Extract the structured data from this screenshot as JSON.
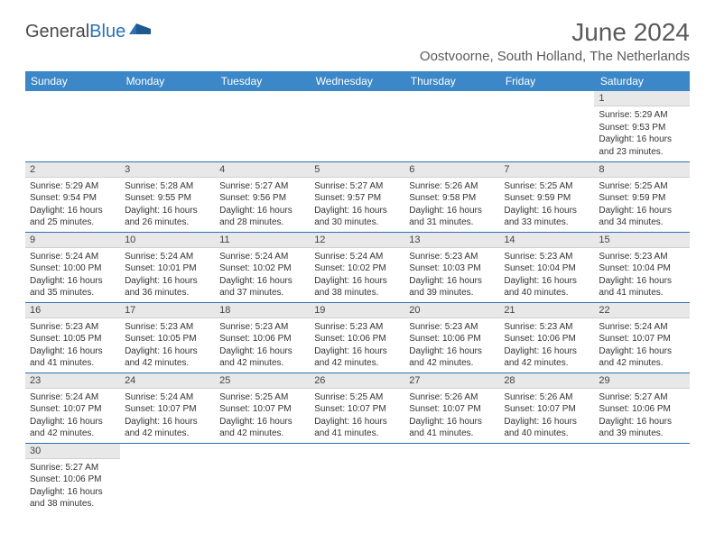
{
  "logo": {
    "part1": "General",
    "part2": "Blue"
  },
  "title": "June 2024",
  "location": "Oostvoorne, South Holland, The Netherlands",
  "colors": {
    "header_bg": "#3b87c8",
    "header_text": "#ffffff",
    "daynum_bg": "#e8e8e8",
    "border": "#2a72b5",
    "text": "#333333",
    "title_text": "#5a5a5a",
    "logo_gray": "#4a4a4a",
    "logo_blue": "#2a72b5"
  },
  "weekdays": [
    "Sunday",
    "Monday",
    "Tuesday",
    "Wednesday",
    "Thursday",
    "Friday",
    "Saturday"
  ],
  "weeks": [
    [
      null,
      null,
      null,
      null,
      null,
      null,
      {
        "n": "1",
        "sr": "Sunrise: 5:29 AM",
        "ss": "Sunset: 9:53 PM",
        "d1": "Daylight: 16 hours",
        "d2": "and 23 minutes."
      }
    ],
    [
      {
        "n": "2",
        "sr": "Sunrise: 5:29 AM",
        "ss": "Sunset: 9:54 PM",
        "d1": "Daylight: 16 hours",
        "d2": "and 25 minutes."
      },
      {
        "n": "3",
        "sr": "Sunrise: 5:28 AM",
        "ss": "Sunset: 9:55 PM",
        "d1": "Daylight: 16 hours",
        "d2": "and 26 minutes."
      },
      {
        "n": "4",
        "sr": "Sunrise: 5:27 AM",
        "ss": "Sunset: 9:56 PM",
        "d1": "Daylight: 16 hours",
        "d2": "and 28 minutes."
      },
      {
        "n": "5",
        "sr": "Sunrise: 5:27 AM",
        "ss": "Sunset: 9:57 PM",
        "d1": "Daylight: 16 hours",
        "d2": "and 30 minutes."
      },
      {
        "n": "6",
        "sr": "Sunrise: 5:26 AM",
        "ss": "Sunset: 9:58 PM",
        "d1": "Daylight: 16 hours",
        "d2": "and 31 minutes."
      },
      {
        "n": "7",
        "sr": "Sunrise: 5:25 AM",
        "ss": "Sunset: 9:59 PM",
        "d1": "Daylight: 16 hours",
        "d2": "and 33 minutes."
      },
      {
        "n": "8",
        "sr": "Sunrise: 5:25 AM",
        "ss": "Sunset: 9:59 PM",
        "d1": "Daylight: 16 hours",
        "d2": "and 34 minutes."
      }
    ],
    [
      {
        "n": "9",
        "sr": "Sunrise: 5:24 AM",
        "ss": "Sunset: 10:00 PM",
        "d1": "Daylight: 16 hours",
        "d2": "and 35 minutes."
      },
      {
        "n": "10",
        "sr": "Sunrise: 5:24 AM",
        "ss": "Sunset: 10:01 PM",
        "d1": "Daylight: 16 hours",
        "d2": "and 36 minutes."
      },
      {
        "n": "11",
        "sr": "Sunrise: 5:24 AM",
        "ss": "Sunset: 10:02 PM",
        "d1": "Daylight: 16 hours",
        "d2": "and 37 minutes."
      },
      {
        "n": "12",
        "sr": "Sunrise: 5:24 AM",
        "ss": "Sunset: 10:02 PM",
        "d1": "Daylight: 16 hours",
        "d2": "and 38 minutes."
      },
      {
        "n": "13",
        "sr": "Sunrise: 5:23 AM",
        "ss": "Sunset: 10:03 PM",
        "d1": "Daylight: 16 hours",
        "d2": "and 39 minutes."
      },
      {
        "n": "14",
        "sr": "Sunrise: 5:23 AM",
        "ss": "Sunset: 10:04 PM",
        "d1": "Daylight: 16 hours",
        "d2": "and 40 minutes."
      },
      {
        "n": "15",
        "sr": "Sunrise: 5:23 AM",
        "ss": "Sunset: 10:04 PM",
        "d1": "Daylight: 16 hours",
        "d2": "and 41 minutes."
      }
    ],
    [
      {
        "n": "16",
        "sr": "Sunrise: 5:23 AM",
        "ss": "Sunset: 10:05 PM",
        "d1": "Daylight: 16 hours",
        "d2": "and 41 minutes."
      },
      {
        "n": "17",
        "sr": "Sunrise: 5:23 AM",
        "ss": "Sunset: 10:05 PM",
        "d1": "Daylight: 16 hours",
        "d2": "and 42 minutes."
      },
      {
        "n": "18",
        "sr": "Sunrise: 5:23 AM",
        "ss": "Sunset: 10:06 PM",
        "d1": "Daylight: 16 hours",
        "d2": "and 42 minutes."
      },
      {
        "n": "19",
        "sr": "Sunrise: 5:23 AM",
        "ss": "Sunset: 10:06 PM",
        "d1": "Daylight: 16 hours",
        "d2": "and 42 minutes."
      },
      {
        "n": "20",
        "sr": "Sunrise: 5:23 AM",
        "ss": "Sunset: 10:06 PM",
        "d1": "Daylight: 16 hours",
        "d2": "and 42 minutes."
      },
      {
        "n": "21",
        "sr": "Sunrise: 5:23 AM",
        "ss": "Sunset: 10:06 PM",
        "d1": "Daylight: 16 hours",
        "d2": "and 42 minutes."
      },
      {
        "n": "22",
        "sr": "Sunrise: 5:24 AM",
        "ss": "Sunset: 10:07 PM",
        "d1": "Daylight: 16 hours",
        "d2": "and 42 minutes."
      }
    ],
    [
      {
        "n": "23",
        "sr": "Sunrise: 5:24 AM",
        "ss": "Sunset: 10:07 PM",
        "d1": "Daylight: 16 hours",
        "d2": "and 42 minutes."
      },
      {
        "n": "24",
        "sr": "Sunrise: 5:24 AM",
        "ss": "Sunset: 10:07 PM",
        "d1": "Daylight: 16 hours",
        "d2": "and 42 minutes."
      },
      {
        "n": "25",
        "sr": "Sunrise: 5:25 AM",
        "ss": "Sunset: 10:07 PM",
        "d1": "Daylight: 16 hours",
        "d2": "and 42 minutes."
      },
      {
        "n": "26",
        "sr": "Sunrise: 5:25 AM",
        "ss": "Sunset: 10:07 PM",
        "d1": "Daylight: 16 hours",
        "d2": "and 41 minutes."
      },
      {
        "n": "27",
        "sr": "Sunrise: 5:26 AM",
        "ss": "Sunset: 10:07 PM",
        "d1": "Daylight: 16 hours",
        "d2": "and 41 minutes."
      },
      {
        "n": "28",
        "sr": "Sunrise: 5:26 AM",
        "ss": "Sunset: 10:07 PM",
        "d1": "Daylight: 16 hours",
        "d2": "and 40 minutes."
      },
      {
        "n": "29",
        "sr": "Sunrise: 5:27 AM",
        "ss": "Sunset: 10:06 PM",
        "d1": "Daylight: 16 hours",
        "d2": "and 39 minutes."
      }
    ],
    [
      {
        "n": "30",
        "sr": "Sunrise: 5:27 AM",
        "ss": "Sunset: 10:06 PM",
        "d1": "Daylight: 16 hours",
        "d2": "and 38 minutes."
      },
      null,
      null,
      null,
      null,
      null,
      null
    ]
  ]
}
